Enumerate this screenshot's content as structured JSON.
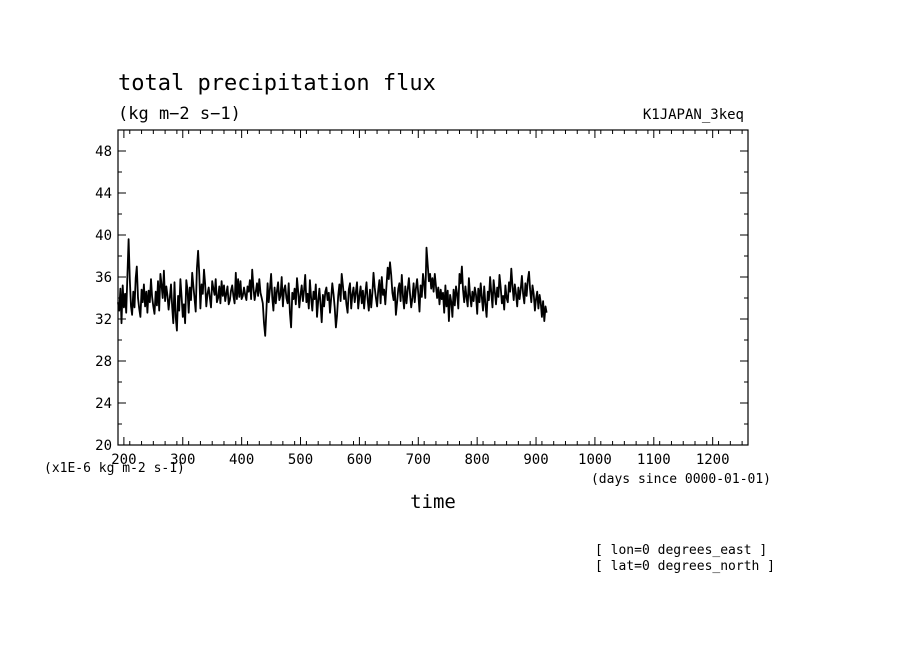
{
  "chart_data": {
    "type": "line",
    "title": "total precipitation flux",
    "units": "(kg m−2 s−1)",
    "dataset": "K1JAPAN_3keq",
    "xlabel": "time",
    "x_unit_note": "(days since 0000-01-01)",
    "y_scale_note": "(x1E-6 kg m-2 s-1)",
    "location_notes": [
      "[ lon=0 degrees_east ]",
      "[ lat=0 degrees_north ]"
    ],
    "xlim": [
      190,
      1260
    ],
    "ylim": [
      20,
      50
    ],
    "x_ticks": [
      200,
      300,
      400,
      500,
      600,
      700,
      800,
      900,
      1000,
      1100,
      1200
    ],
    "y_ticks": [
      20,
      24,
      28,
      32,
      36,
      40,
      44,
      48
    ],
    "grid": false,
    "line_color": "#000000",
    "series": [
      {
        "x_start": 190,
        "x_step": 2,
        "values": [
          33.6,
          32.8,
          34.9,
          31.6,
          35.2,
          33.1,
          34.4,
          32.6,
          36.1,
          39.6,
          35.8,
          33.2,
          32.4,
          34.6,
          33.1,
          35.9,
          37.0,
          34.0,
          33.0,
          32.2,
          34.8,
          33.6,
          35.3,
          33.2,
          34.6,
          32.6,
          34.7,
          33.6,
          35.8,
          34.1,
          33.2,
          32.5,
          34.6,
          33.3,
          35.6,
          32.8,
          36.3,
          35.2,
          34.0,
          36.6,
          33.7,
          35.1,
          34.2,
          32.9,
          34.0,
          35.3,
          33.1,
          31.6,
          35.5,
          32.2,
          30.9,
          34.2,
          32.8,
          35.8,
          34.1,
          32.2,
          33.4,
          31.6,
          35.7,
          34.8,
          32.6,
          35.0,
          33.8,
          36.4,
          35.1,
          34.0,
          32.7,
          36.8,
          38.5,
          36.2,
          33.0,
          35.3,
          34.4,
          36.7,
          35.4,
          33.2,
          34.4,
          35.0,
          34.0,
          33.1,
          35.6,
          34.9,
          34.3,
          35.8,
          33.6,
          34.0,
          35.1,
          33.5,
          35.6,
          34.2,
          35.2,
          33.7,
          34.4,
          35.1,
          33.4,
          33.8,
          34.7,
          35.2,
          34.2,
          33.5,
          36.4,
          33.9,
          35.8,
          34.1,
          35.6,
          33.9,
          34.2,
          35.0,
          34.3,
          33.8,
          35.1,
          34.6,
          35.7,
          33.9,
          36.7,
          35.0,
          33.8,
          34.6,
          35.4,
          34.2,
          35.8,
          34.5,
          34.0,
          33.5,
          31.6,
          30.4,
          32.8,
          35.4,
          33.6,
          34.8,
          36.3,
          34.0,
          32.8,
          35.0,
          33.5,
          34.7,
          35.5,
          33.8,
          34.2,
          36.0,
          33.2,
          34.8,
          35.2,
          34.0,
          33.5,
          35.4,
          32.6,
          31.2,
          34.5,
          33.9,
          34.9,
          33.4,
          35.9,
          34.6,
          33.1,
          34.3,
          35.2,
          33.7,
          34.8,
          36.2,
          33.6,
          34.4,
          33.0,
          35.7,
          34.0,
          32.8,
          34.6,
          33.9,
          35.3,
          32.2,
          33.7,
          34.9,
          33.5,
          31.7,
          34.3,
          33.2,
          34.6,
          35.0,
          33.8,
          34.5,
          32.6,
          33.9,
          35.4,
          34.4,
          33.1,
          31.2,
          32.3,
          34.2,
          35.3,
          33.7,
          36.3,
          35.2,
          33.9,
          34.6,
          33.4,
          32.6,
          34.8,
          35.4,
          33.0,
          34.3,
          35.0,
          33.6,
          34.6,
          35.5,
          33.0,
          34.2,
          35.1,
          33.5,
          34.7,
          33.0,
          34.4,
          35.5,
          33.9,
          32.8,
          34.8,
          33.1,
          34.5,
          36.4,
          35.0,
          34.0,
          33.2,
          34.7,
          35.7,
          33.5,
          36.0,
          34.3,
          34.8,
          33.4,
          35.2,
          36.9,
          35.8,
          37.4,
          36.2,
          34.5,
          33.8,
          35.0,
          32.4,
          33.6,
          34.9,
          35.4,
          33.7,
          36.2,
          34.1,
          33.0,
          35.1,
          33.5,
          34.8,
          35.9,
          34.4,
          33.1,
          34.0,
          35.4,
          33.6,
          34.9,
          35.8,
          34.4,
          32.7,
          35.2,
          34.1,
          36.3,
          35.3,
          34.0,
          38.8,
          37.2,
          35.6,
          36.3,
          34.9,
          35.9,
          34.6,
          36.3,
          35.2,
          34.0,
          35.0,
          33.4,
          34.8,
          33.9,
          34.5,
          32.6,
          35.2,
          33.2,
          34.7,
          31.8,
          34.3,
          33.6,
          32.2,
          34.8,
          33.3,
          35.1,
          34.4,
          33.0,
          36.3,
          35.4,
          37.0,
          34.8,
          33.6,
          35.1,
          34.0,
          33.2,
          35.9,
          34.2,
          33.2,
          34.6,
          33.7,
          35.0,
          34.3,
          32.5,
          34.9,
          33.6,
          35.4,
          34.0,
          32.8,
          35.1,
          33.4,
          32.2,
          34.6,
          33.8,
          36.0,
          34.5,
          33.1,
          35.7,
          34.6,
          33.4,
          35.0,
          34.1,
          36.2,
          35.0,
          33.5,
          34.2,
          32.9,
          35.2,
          34.0,
          33.6,
          35.5,
          34.6,
          36.8,
          35.1,
          33.8,
          35.3,
          34.4,
          33.2,
          35.0,
          33.9,
          34.8,
          36.1,
          34.4,
          33.5,
          35.4,
          34.2,
          35.7,
          36.5,
          34.8,
          33.6,
          35.2,
          34.4,
          32.8,
          33.9,
          34.6,
          33.0,
          34.3,
          33.6,
          32.2,
          33.7,
          31.8,
          33.2,
          32.6
        ]
      }
    ]
  }
}
